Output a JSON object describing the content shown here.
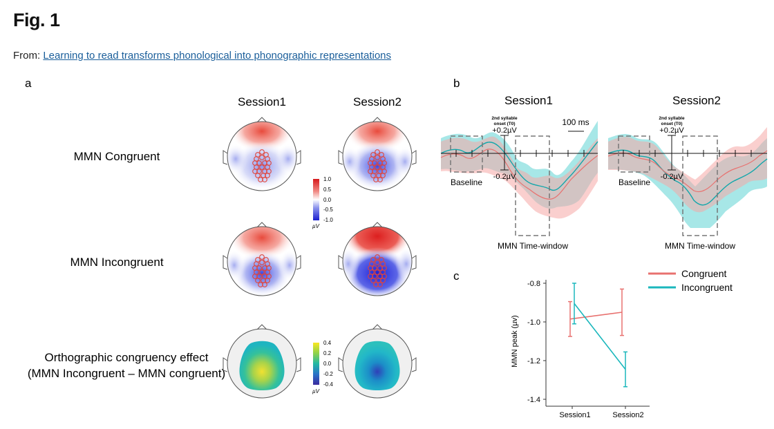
{
  "header": {
    "figure_title": "Fig. 1",
    "from_label": "From:",
    "article_link": "Learning to read transforms phonological into phonographic representations"
  },
  "panel_a": {
    "panel_label": "a",
    "col_session1": "Session1",
    "col_session2": "Session2",
    "row_congruent": "MMN Congruent",
    "row_incongruent": "MMN Incongruent",
    "row_effect_line1": "Orthographic congruency effect",
    "row_effect_line2": "(MMN Incongruent – MMN congruent)",
    "colorbar_mmn": {
      "ticks": [
        "1.0",
        "0.5",
        "0.0",
        "-0.5",
        "-1.0"
      ],
      "unit": "µV"
    },
    "colorbar_effect": {
      "ticks": [
        "0.4",
        "0.2",
        "0.0",
        "-0.2",
        "-0.4"
      ],
      "unit": "µV"
    }
  },
  "panel_b": {
    "panel_label": "b",
    "session1_title": "Session1",
    "session2_title": "Session2",
    "onset_label_line1": "2nd syllable",
    "onset_label_line2": "onset (T0)",
    "pos_scale": "+0.2µV",
    "neg_scale": "-0.2µV",
    "time_scale": "100 ms",
    "baseline_label": "Baseline",
    "window_label": "MMN Time-window"
  },
  "panel_c": {
    "panel_label": "c",
    "colors": {
      "congruent": "#e8716f",
      "incongruent": "#1ab7bc"
    },
    "chart_data": {
      "type": "line",
      "x": [
        "Session1",
        "Session2"
      ],
      "ylabel": "MMN peak (µv)",
      "ylim": [
        -1.4,
        -0.8
      ],
      "yticks": [
        "-0.8",
        "-1.0",
        "-1.2",
        "-1.4"
      ],
      "legend_position": "top-right",
      "series": [
        {
          "name": "Congruent",
          "values": [
            -0.985,
            -0.95
          ],
          "error": [
            0.09,
            0.12
          ]
        },
        {
          "name": "Incongruent",
          "values": [
            -0.905,
            -1.245
          ],
          "error": [
            0.105,
            0.09
          ]
        }
      ]
    }
  }
}
